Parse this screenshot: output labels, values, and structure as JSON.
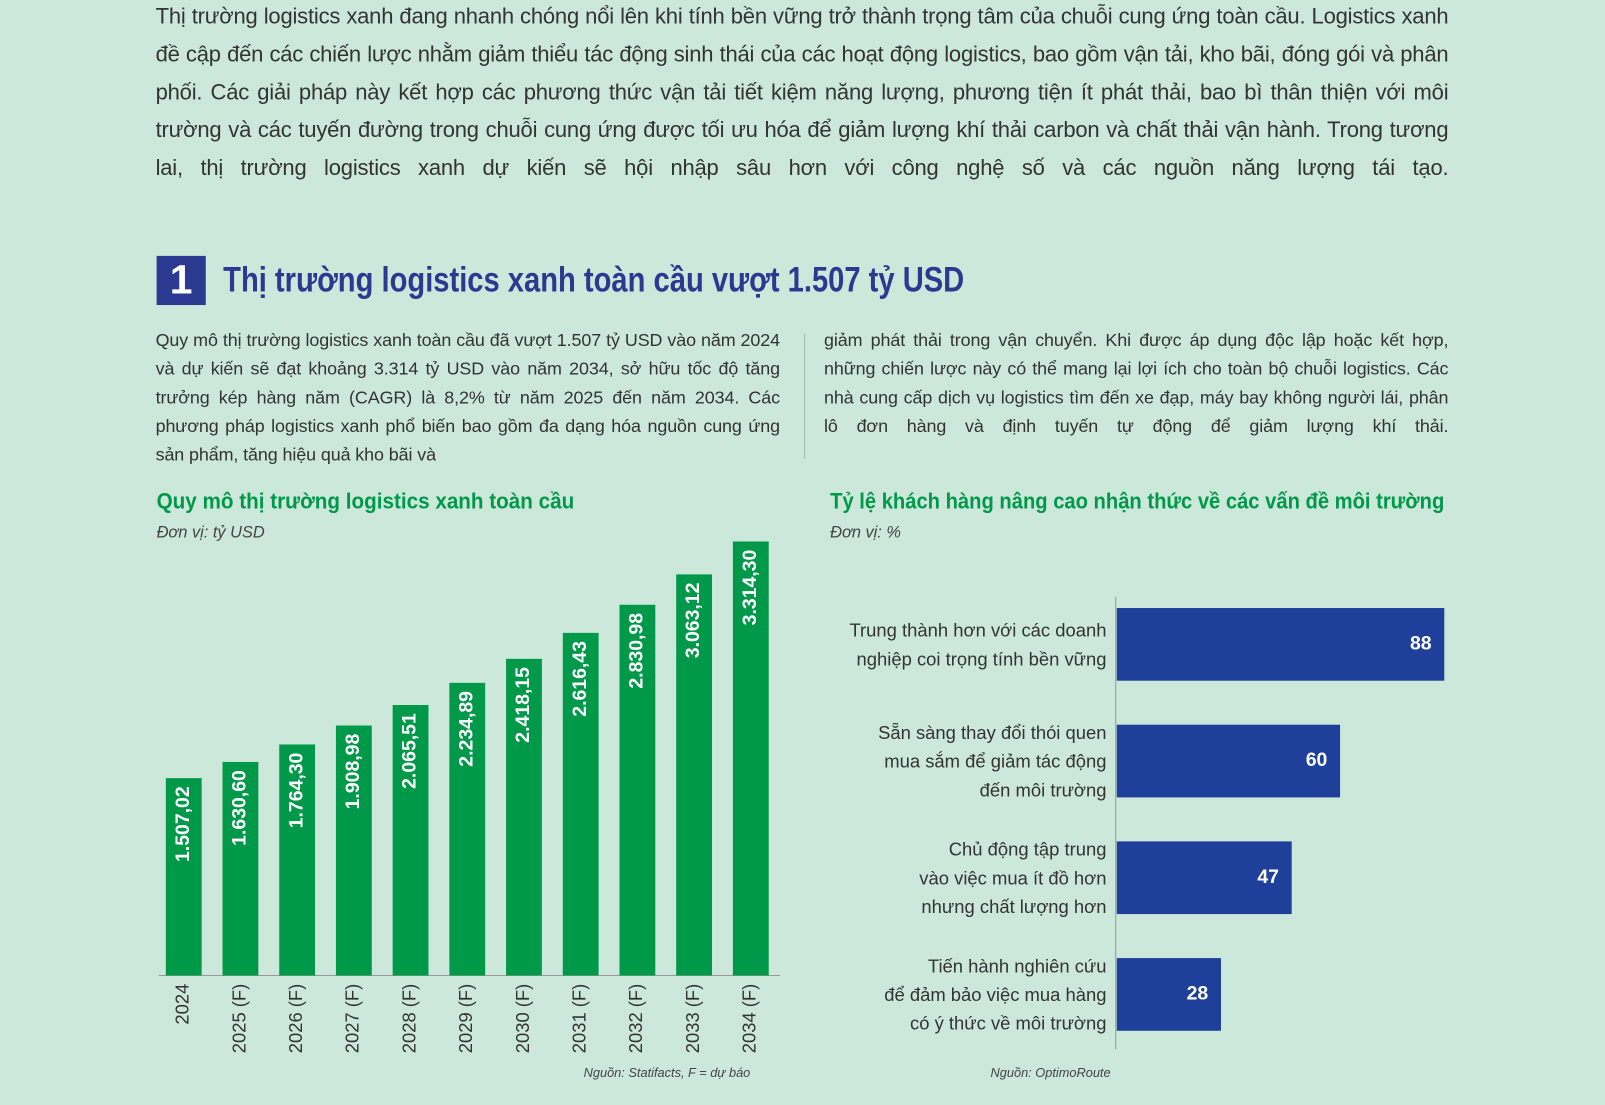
{
  "intro": "Thị trường logistics xanh đang nhanh chóng nổi lên khi tính bền vững trở thành trọng tâm của chuỗi cung ứng toàn cầu. Logistics xanh đề cập đến các chiến lược nhằm giảm thiểu tác động sinh thái của các hoạt động logistics, bao gồm vận tải, kho bãi, đóng gói và phân phối. Các giải pháp này kết hợp các phương thức vận tải tiết kiệm năng lượng, phương tiện ít phát thải, bao bì thân thiện với môi trường và các tuyến đường trong chuỗi cung ứng được tối ưu hóa để giảm lượng khí thải carbon và chất thải vận hành. Trong tương lai, thị trường logistics xanh dự kiến sẽ hội nhập sâu hơn với công nghệ số và các nguồn năng lượng tái tạo.",
  "section": {
    "number": "1",
    "title": "Thị trường logistics xanh toàn cầu vượt 1.507 tỷ USD"
  },
  "body": [
    "Quy mô thị trường logistics xanh toàn cầu đã vượt 1.507 tỷ USD vào năm 2024 và dự kiến sẽ đạt khoảng 3.314 tỷ USD vào năm 2034, sở hữu tốc độ tăng trưởng kép hàng năm (CAGR) là 8,2% từ năm 2025 đến năm 2034. Các phương pháp logistics xanh phổ biến bao gồm đa dạng hóa nguồn cung ứng sản phẩm, tăng hiệu quả kho bãi và",
    "giảm phát thải trong vận chuyển. Khi được áp dụng độc lập hoặc kết hợp, những chiến lược này có thể mang lại lợi ích cho toàn bộ chuỗi logistics. Các nhà cung cấp dịch vụ logistics tìm đến xe đạp, máy bay không người lái, phân lô đơn hàng và định tuyến tự động để giảm lượng khí thải."
  ],
  "chart_data": [
    {
      "type": "bar",
      "title": "Quy mô thị trường logistics xanh toàn cầu",
      "subtitle": "Đơn vị: tỷ USD",
      "categories": [
        "2024",
        "2025 (F)",
        "2026 (F)",
        "2027 (F)",
        "2028 (F)",
        "2029 (F)",
        "2030 (F)",
        "2031 (F)",
        "2032 (F)",
        "2033 (F)",
        "2034 (F)"
      ],
      "values": [
        1507.02,
        1630.6,
        1764.3,
        1908.98,
        2065.51,
        2234.89,
        2418.15,
        2616.43,
        2830.98,
        3063.12,
        3314.3
      ],
      "value_labels": [
        "1.507,02",
        "1.630,60",
        "1.764,30",
        "1.908,98",
        "2.065,51",
        "2.234,89",
        "2.418,15",
        "2.616,43",
        "2.830,98",
        "3.063,12",
        "3.314,30"
      ],
      "color": "#00994a",
      "source": "Nguồn: Statifacts, F = dự báo"
    },
    {
      "type": "barh",
      "title": "Tỷ lệ khách hàng nâng cao nhận thức về các vấn đề môi trường",
      "subtitle": "Đơn vị: %",
      "categories": [
        "Trung thành hơn với các doanh\nnghiệp coi trọng tính bền vững",
        "Sẵn sàng thay đổi thói quen\nmua sắm để giảm tác động\nđến môi trường",
        "Chủ động tập trung\nvào việc mua ít đồ hơn\nnhưng chất lượng hơn",
        "Tiến hành nghiên cứu\nđể đảm bảo việc mua hàng\ncó ý thức về môi trường"
      ],
      "values": [
        88,
        60,
        47,
        28
      ],
      "color": "#1f409a",
      "source": "Nguồn: OptimoRoute"
    }
  ]
}
